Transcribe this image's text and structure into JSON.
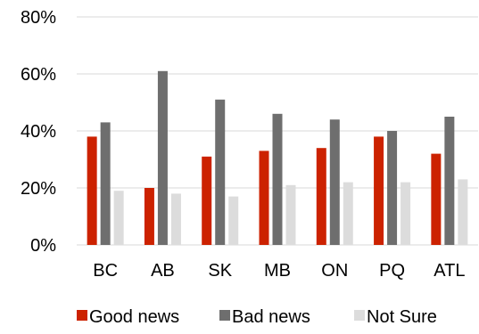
{
  "chart_data": {
    "type": "bar",
    "title": "",
    "xlabel": "",
    "ylabel": "",
    "categories": [
      "BC",
      "AB",
      "SK",
      "MB",
      "ON",
      "PQ",
      "ATL"
    ],
    "series": [
      {
        "name": "Good news",
        "color": "#cc2200",
        "values": [
          38,
          20,
          31,
          33,
          34,
          38,
          32
        ]
      },
      {
        "name": "Bad news",
        "color": "#6e6e6e",
        "values": [
          43,
          61,
          51,
          46,
          44,
          40,
          45
        ]
      },
      {
        "name": "Not Sure",
        "color": "#dcdcdc",
        "values": [
          19,
          18,
          17,
          21,
          22,
          22,
          23
        ]
      }
    ],
    "ylim": [
      0,
      80
    ],
    "yticks": [
      0,
      20,
      40,
      60,
      80
    ],
    "ytick_labels": [
      "0%",
      "20%",
      "40%",
      "60%",
      "80%"
    ],
    "grid": true,
    "legend": "bottom",
    "gridline_color": "#d9d9d9"
  }
}
